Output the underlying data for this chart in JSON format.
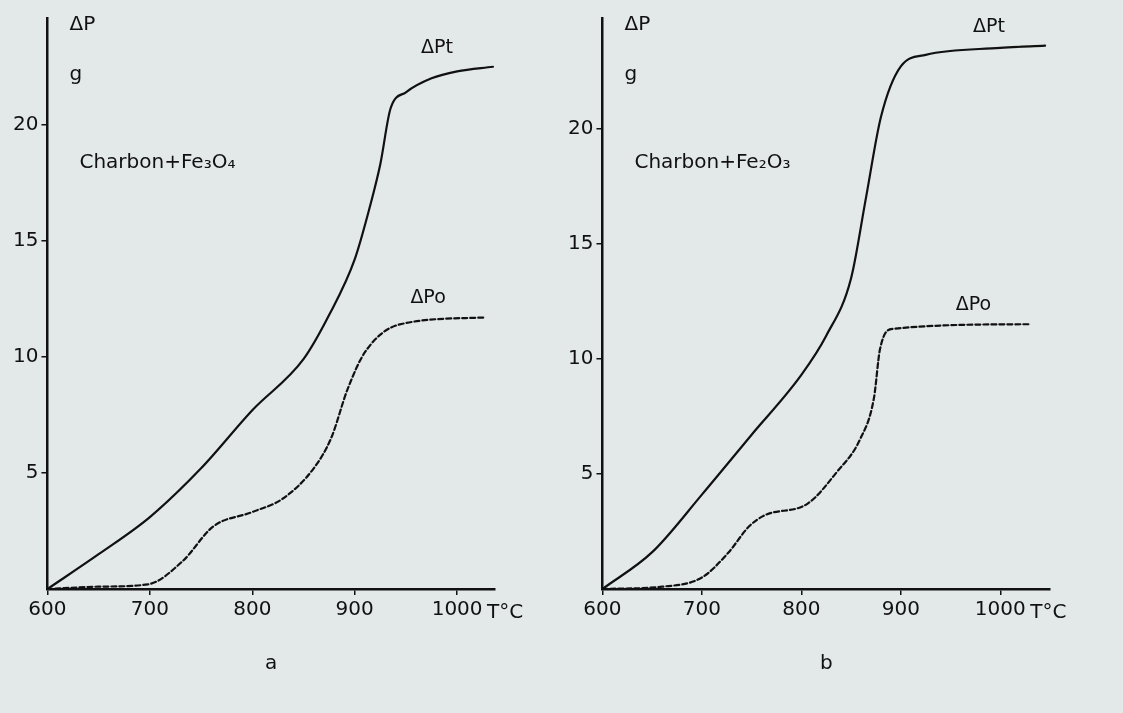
{
  "chart_data": [
    {
      "type": "line",
      "title": "a",
      "xlabel": "T°C",
      "ylabel": "ΔP",
      "annotations": [
        "g",
        "Charbon+Fe₃O₄"
      ],
      "xlim": [
        600,
        1037
      ],
      "ylim": [
        0,
        24.6
      ],
      "xticks": [
        600,
        700,
        800,
        900,
        1000
      ],
      "yticks": [
        5,
        10,
        15,
        20
      ],
      "grid": false,
      "legend": false,
      "marker": "none",
      "series": [
        {
          "name": "ΔPt",
          "color": "#111111",
          "line_style": "solid",
          "x": [
            600,
            650,
            700,
            750,
            800,
            850,
            875,
            900,
            915,
            925,
            935,
            950,
            975,
            1000,
            1035
          ],
          "values": [
            0,
            1.5,
            3.1,
            5.2,
            7.7,
            9.9,
            11.8,
            14.2,
            16.5,
            18.3,
            20.7,
            21.4,
            22.0,
            22.3,
            22.5
          ]
        },
        {
          "name": "ΔPo",
          "color": "#111111",
          "line_style": "dashed",
          "x": [
            600,
            650,
            698,
            732,
            762,
            799,
            830,
            860,
            877,
            893,
            910,
            944,
            1028
          ],
          "values": [
            0,
            0.1,
            0.2,
            1.2,
            2.7,
            3.3,
            3.9,
            5.2,
            6.5,
            8.6,
            10.2,
            11.4,
            11.7
          ]
        }
      ]
    },
    {
      "type": "line",
      "title": "b",
      "xlabel": "T°C",
      "ylabel": "ΔP",
      "annotations": [
        "g",
        "Charbon+Fe₂O₃"
      ],
      "xlim": [
        600,
        1050
      ],
      "ylim": [
        0,
        24.8
      ],
      "xticks": [
        600,
        700,
        800,
        900,
        1000
      ],
      "yticks": [
        5,
        10,
        15,
        20
      ],
      "grid": false,
      "legend": false,
      "marker": "none",
      "series": [
        {
          "name": "ΔPt",
          "color": "#111111",
          "line_style": "solid",
          "x": [
            600,
            650,
            700,
            750,
            800,
            825,
            850,
            865,
            880,
            900,
            925,
            1000,
            1045
          ],
          "values": [
            0,
            1.6,
            4.1,
            6.7,
            9.3,
            11.0,
            13.5,
            17.0,
            20.5,
            22.7,
            23.2,
            23.5,
            23.6
          ]
        },
        {
          "name": "ΔPo",
          "color": "#111111",
          "line_style": "dashed",
          "x": [
            600,
            660,
            700,
            727,
            747,
            763,
            806,
            836,
            859,
            873,
            879,
            892,
            1031
          ],
          "values": [
            0,
            0.1,
            0.5,
            1.6,
            2.7,
            3.2,
            3.7,
            5.1,
            6.5,
            8.3,
            10.4,
            11.3,
            11.5
          ]
        }
      ]
    }
  ]
}
